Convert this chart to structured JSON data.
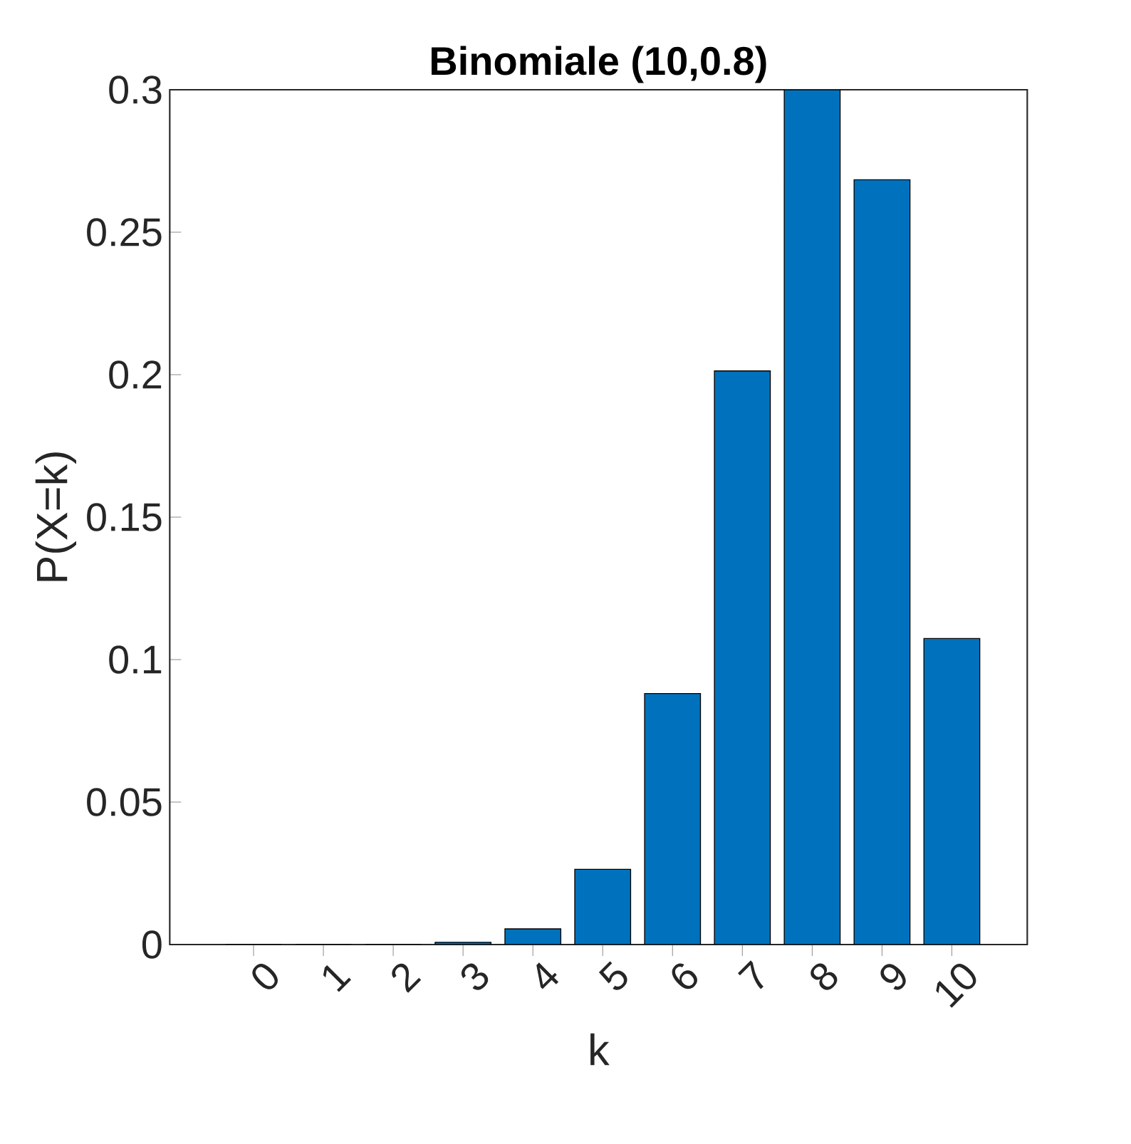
{
  "chart_data": {
    "type": "bar",
    "title": "Binomiale (10,0.8)",
    "xlabel": "k",
    "ylabel": "P(X=k)",
    "categories": [
      "0",
      "1",
      "2",
      "3",
      "4",
      "5",
      "6",
      "7",
      "8",
      "9",
      "10"
    ],
    "values": [
      0,
      0,
      0,
      0.0008,
      0.0055,
      0.0264,
      0.0881,
      0.2013,
      0.3,
      0.2684,
      0.1074
    ],
    "color": "#0072bd",
    "ylim": [
      0,
      0.3
    ],
    "yticks": [
      0,
      0.05,
      0.1,
      0.15,
      0.2,
      0.25,
      0.3
    ],
    "grid": false
  }
}
